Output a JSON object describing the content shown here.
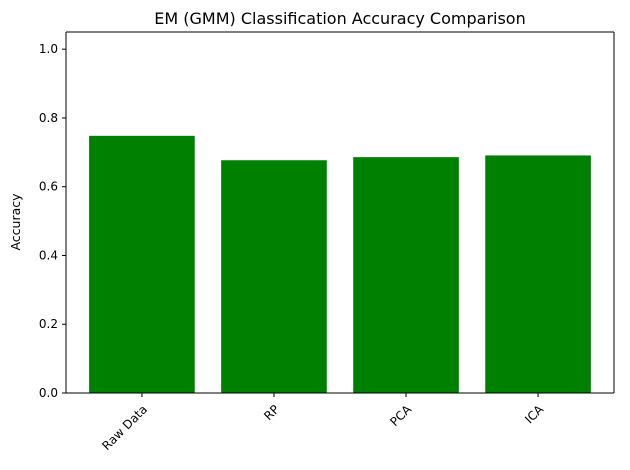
{
  "chart_data": {
    "type": "bar",
    "title": "EM (GMM) Classification Accuracy Comparison",
    "xlabel": "",
    "ylabel": "Accuracy",
    "categories": [
      "Raw Data",
      "RP",
      "PCA",
      "ICA"
    ],
    "values": [
      0.748,
      0.677,
      0.686,
      0.691
    ],
    "ylim": [
      0.0,
      1.05
    ],
    "yticks": [
      0.0,
      0.2,
      0.4,
      0.6,
      0.8,
      1.0
    ],
    "ytick_labels": [
      "0.0",
      "0.2",
      "0.4",
      "0.6",
      "0.8",
      "1.0"
    ],
    "grid": false,
    "legend": "none",
    "bar_color": "#008000",
    "xtick_rotation": "45°"
  }
}
